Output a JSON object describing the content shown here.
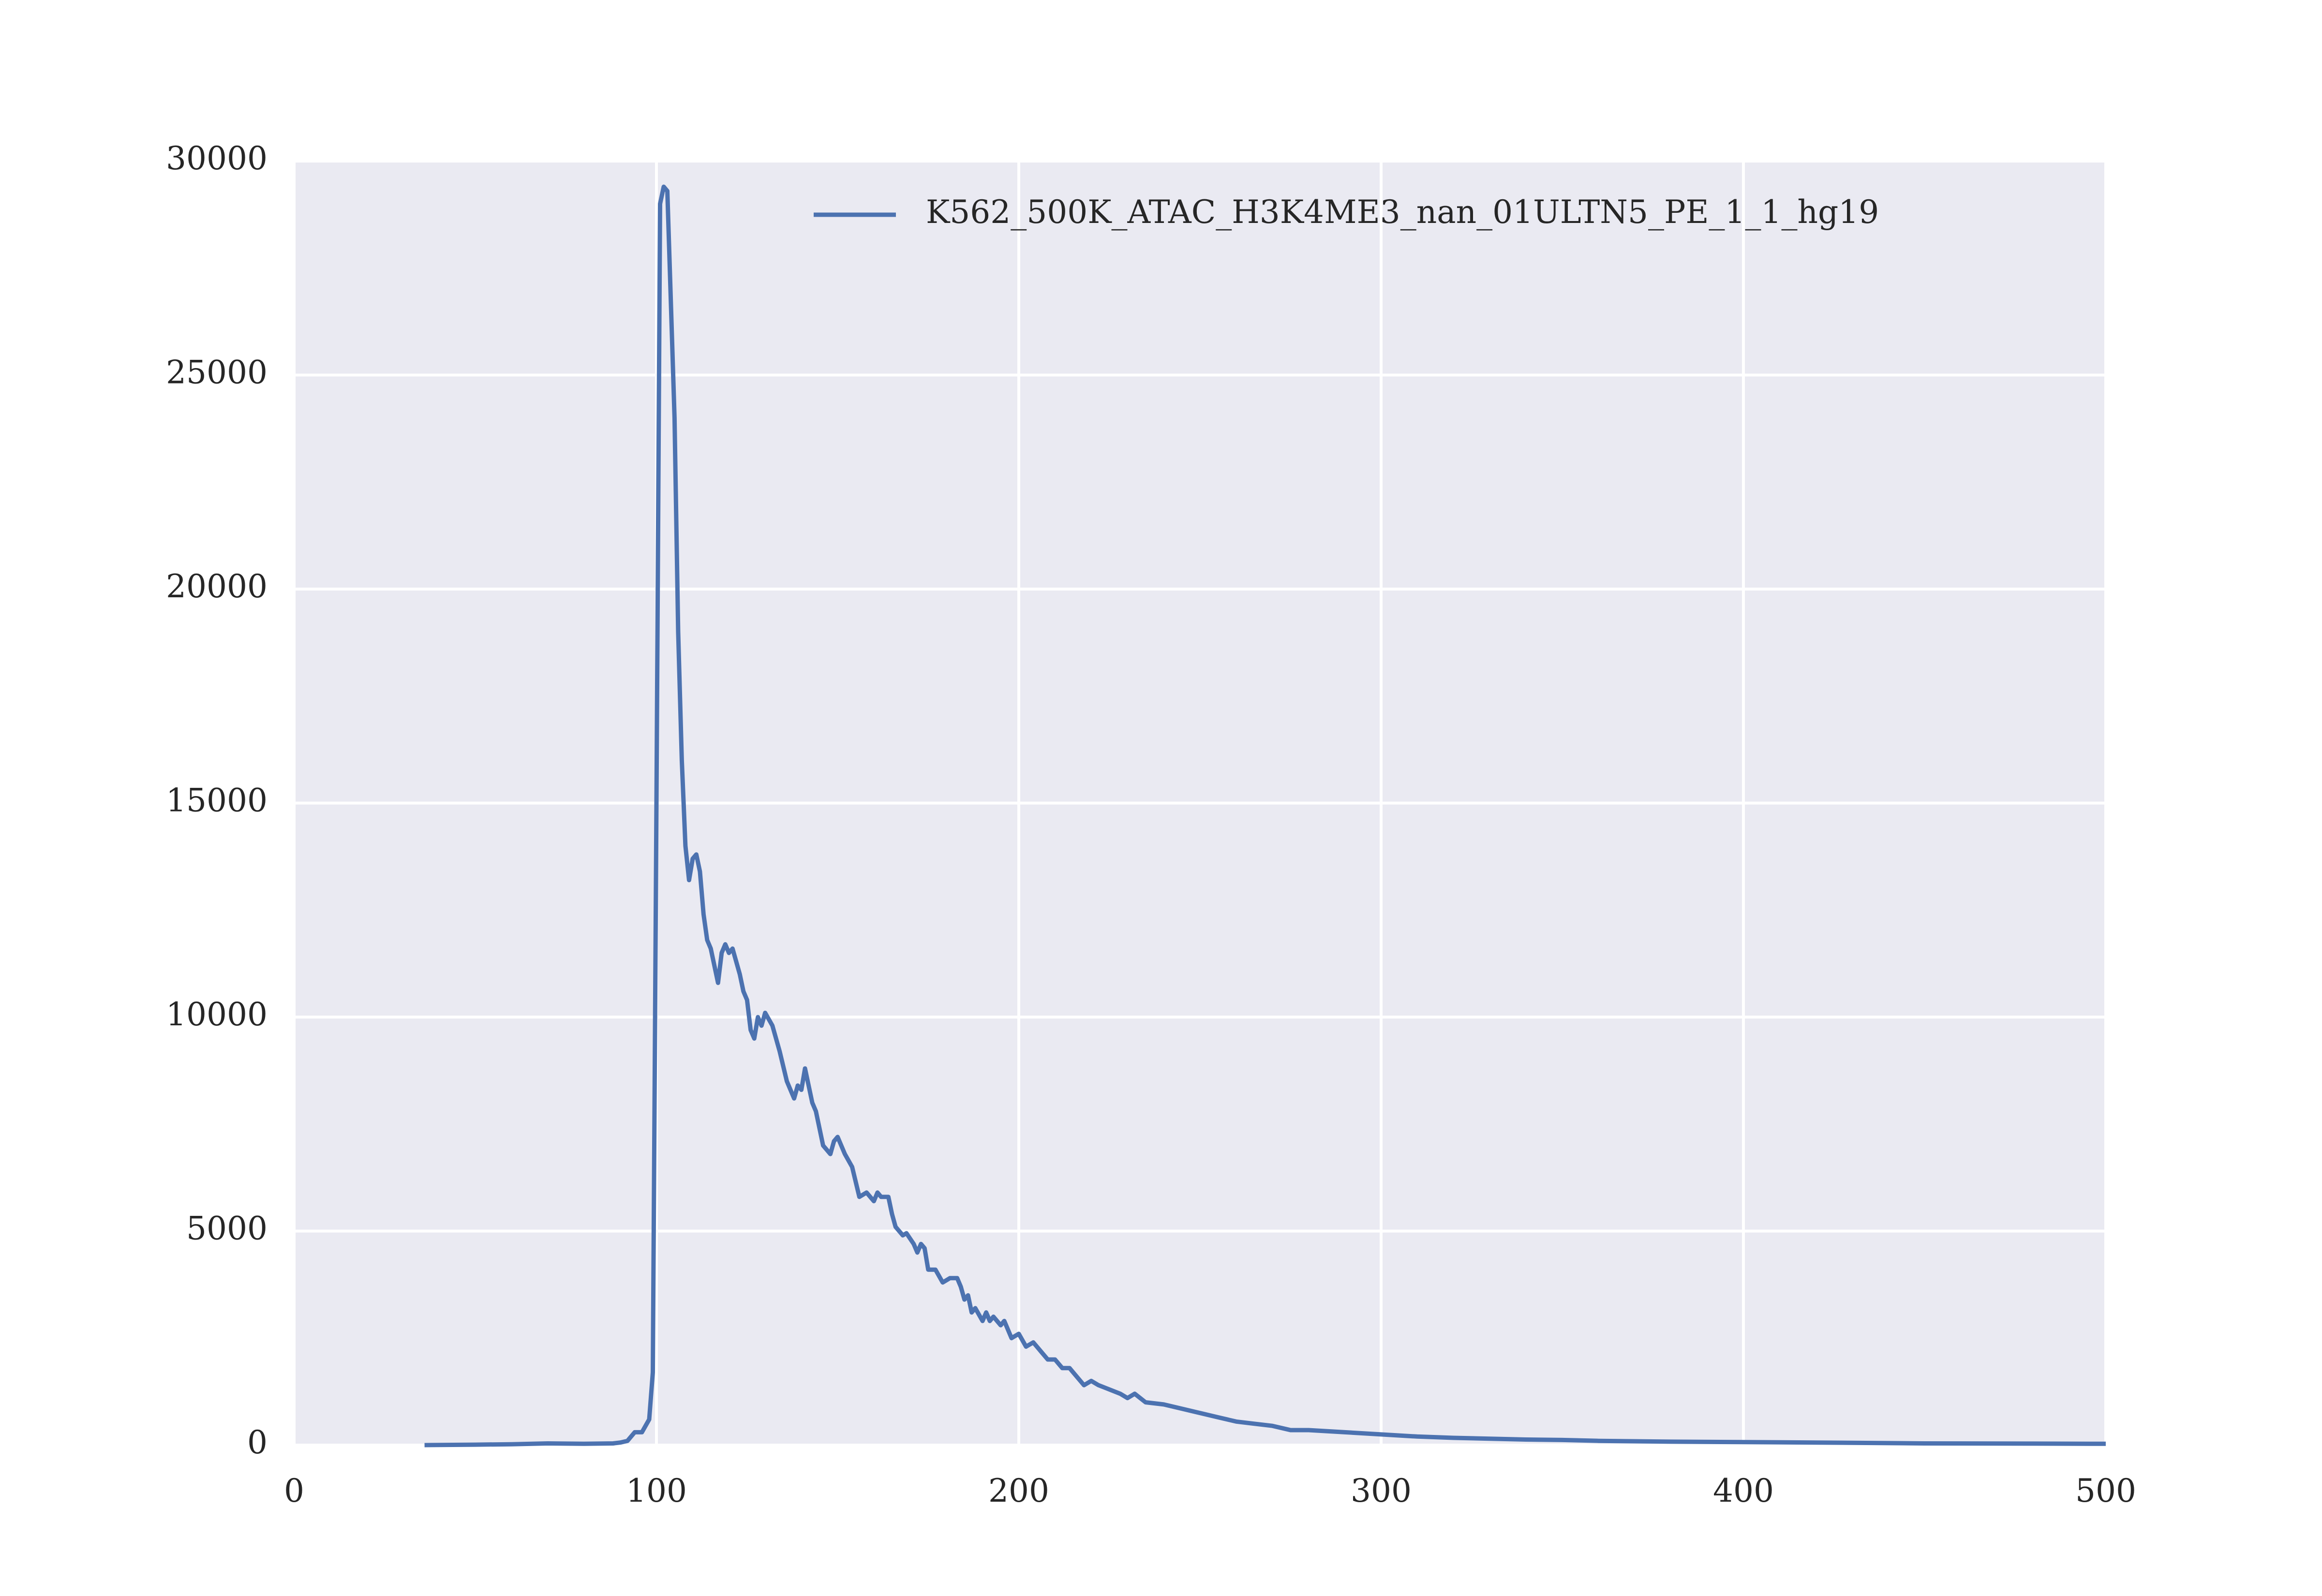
{
  "chart_data": {
    "type": "line",
    "x": [
      36,
      50,
      60,
      70,
      80,
      88,
      90,
      92,
      94,
      96,
      98,
      99,
      100,
      101,
      102,
      103,
      105,
      106,
      107,
      108,
      109,
      110,
      111,
      112,
      113,
      114,
      115,
      117,
      118,
      119,
      120,
      121,
      123,
      124,
      125,
      126,
      127,
      128,
      129,
      130,
      132,
      134,
      136,
      138,
      139,
      140,
      141,
      143,
      144,
      146,
      147,
      148,
      149,
      150,
      152,
      154,
      156,
      158,
      160,
      161,
      162,
      164,
      165,
      166,
      168,
      169,
      171,
      172,
      173,
      174,
      175,
      177,
      179,
      181,
      183,
      184,
      185,
      186,
      187,
      188,
      190,
      191,
      192,
      193,
      195,
      196,
      198,
      200,
      202,
      204,
      206,
      208,
      210,
      212,
      214,
      216,
      218,
      220,
      222,
      225,
      228,
      230,
      232,
      235,
      240,
      245,
      250,
      255,
      260,
      265,
      270,
      275,
      280,
      290,
      300,
      310,
      320,
      330,
      340,
      350,
      360,
      380,
      400,
      420,
      450,
      480,
      500
    ],
    "series": [
      {
        "name": "K562_500K_ATAC_H3K4ME3_nan_01ULTN5_PE_1_1_hg19",
        "color": "#4c72b0",
        "values": [
          0,
          10,
          20,
          40,
          30,
          40,
          60,
          100,
          300,
          300,
          600,
          1700,
          15000,
          29000,
          29400,
          29300,
          24000,
          19000,
          16000,
          14000,
          13200,
          13700,
          13800,
          13400,
          12400,
          11800,
          11600,
          10800,
          11500,
          11700,
          11500,
          11600,
          11000,
          10600,
          10400,
          9700,
          9500,
          10000,
          9800,
          10100,
          9800,
          9200,
          8500,
          8100,
          8400,
          8300,
          8800,
          8000,
          7800,
          7000,
          6900,
          6800,
          7100,
          7200,
          6800,
          6500,
          5800,
          5900,
          5700,
          5900,
          5800,
          5800,
          5400,
          5100,
          4900,
          4950,
          4700,
          4500,
          4700,
          4600,
          4100,
          4100,
          3800,
          3900,
          3900,
          3700,
          3400,
          3500,
          3100,
          3200,
          2900,
          3100,
          2900,
          3000,
          2800,
          2900,
          2500,
          2600,
          2300,
          2400,
          2200,
          2000,
          2000,
          1800,
          1800,
          1600,
          1400,
          1500,
          1400,
          1300,
          1200,
          1100,
          1200,
          1000,
          950,
          850,
          750,
          650,
          550,
          500,
          450,
          350,
          350,
          300,
          250,
          200,
          170,
          150,
          130,
          120,
          100,
          80,
          70,
          60,
          40,
          35,
          30
        ]
      }
    ],
    "xlim": [
      0,
      500
    ],
    "xticks": [
      0,
      100,
      200,
      300,
      400,
      500
    ],
    "ylim": [
      0,
      30000
    ],
    "yticks": [
      0,
      5000,
      10000,
      15000,
      20000,
      25000,
      30000
    ],
    "grid": true,
    "legend": "upper-right"
  }
}
